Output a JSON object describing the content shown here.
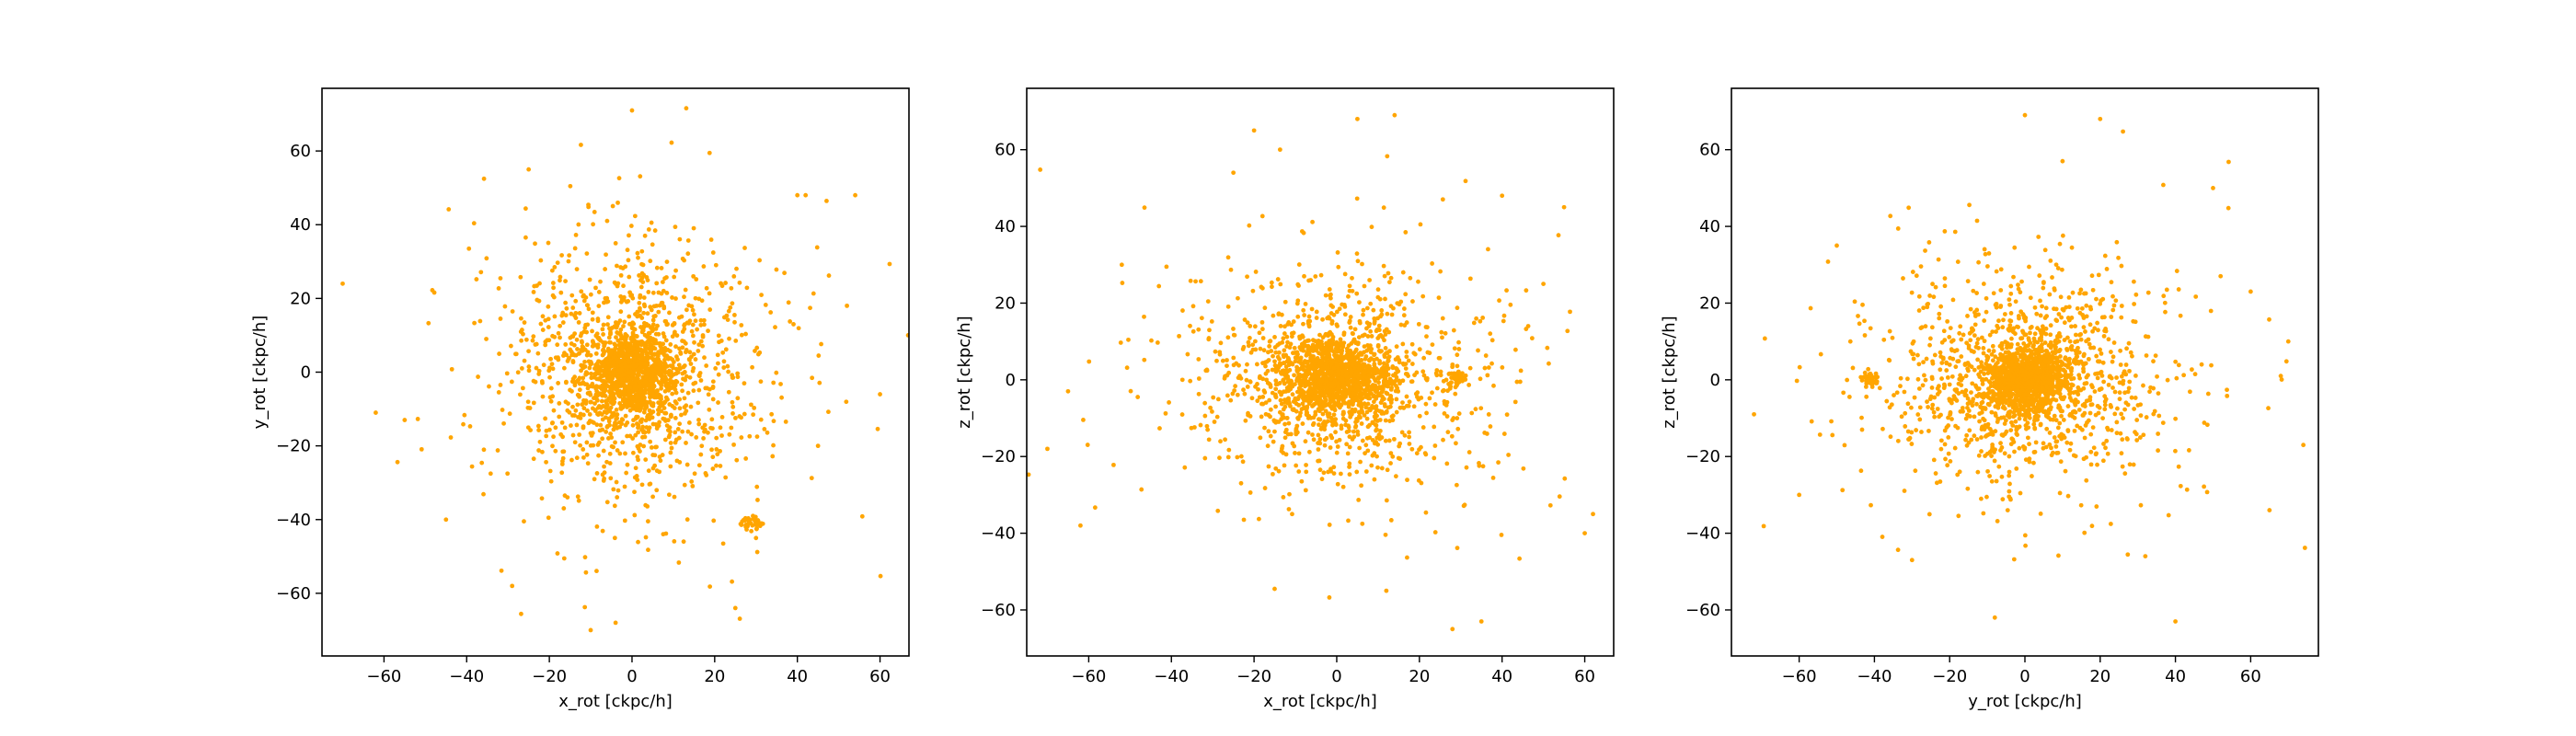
{
  "chart_data": [
    {
      "type": "scatter",
      "xlabel": "x_rot [ckpc/h]",
      "ylabel": "y_rot [ckpc/h]",
      "xlim": [
        -75,
        67
      ],
      "ylim": [
        -77,
        77
      ],
      "xticks": [
        -60,
        -40,
        -20,
        0,
        20,
        40,
        60
      ],
      "yticks": [
        -60,
        -40,
        -20,
        0,
        20,
        40,
        60
      ],
      "color": "#ffa500",
      "grid": false,
      "legend": "none",
      "distribution": {
        "core": {
          "center": [
            0,
            0
          ],
          "n": 900,
          "sigma": [
            5,
            6
          ]
        },
        "bulge": {
          "center": [
            0,
            0
          ],
          "n": 900,
          "sigma": [
            14,
            15
          ]
        },
        "halo": {
          "center": [
            0,
            0
          ],
          "n": 320,
          "sigma": [
            24,
            26
          ]
        },
        "clump": {
          "center": [
            29,
            -41
          ],
          "n": 40,
          "sigma": [
            1.2,
            1.2
          ]
        }
      },
      "x": [
        -70,
        54,
        60,
        -62,
        -55,
        -29,
        -10,
        0,
        25,
        40,
        52,
        42,
        -45,
        45,
        30,
        -25
      ],
      "y": [
        24,
        48,
        -6,
        -11,
        -13,
        -58,
        -70,
        71,
        -64,
        48,
        18,
        48,
        -40,
        -20,
        -45,
        55
      ]
    },
    {
      "type": "scatter",
      "xlabel": "x_rot [ckpc/h]",
      "ylabel": "z_rot [ckpc/h]",
      "xlim": [
        -75,
        67
      ],
      "ylim": [
        -72,
        76
      ],
      "xticks": [
        -60,
        -40,
        -20,
        0,
        20,
        40,
        60
      ],
      "yticks": [
        -60,
        -40,
        -20,
        0,
        20,
        40,
        60
      ],
      "color": "#ffa500",
      "grid": false,
      "legend": "none",
      "distribution": {
        "core": {
          "center": [
            0,
            0
          ],
          "n": 900,
          "sigma": [
            6,
            4.5
          ]
        },
        "bulge": {
          "center": [
            0,
            0
          ],
          "n": 900,
          "sigma": [
            15,
            12
          ]
        },
        "halo": {
          "center": [
            0,
            0
          ],
          "n": 320,
          "sigma": [
            26,
            22
          ]
        },
        "clump": {
          "center": [
            29,
            0
          ],
          "n": 40,
          "sigma": [
            1.2,
            1.2
          ]
        }
      },
      "x": [
        -70,
        -65,
        35,
        14,
        5,
        -25,
        40,
        60,
        62,
        55,
        -62,
        -20,
        28,
        50,
        -52,
        12
      ],
      "y": [
        -18,
        -3,
        -63,
        69,
        68,
        54,
        48,
        -40,
        -35,
        45,
        -38,
        65,
        -65,
        25,
        30,
        -55
      ]
    },
    {
      "type": "scatter",
      "xlabel": "y_rot [ckpc/h]",
      "ylabel": "z_rot [ckpc/h]",
      "xlim": [
        -78,
        78
      ],
      "ylim": [
        -72,
        76
      ],
      "xticks": [
        -60,
        -40,
        -20,
        0,
        20,
        40,
        60
      ],
      "yticks": [
        -60,
        -40,
        -20,
        0,
        20,
        40,
        60
      ],
      "color": "#ffa500",
      "grid": false,
      "legend": "none",
      "distribution": {
        "core": {
          "center": [
            0,
            0
          ],
          "n": 900,
          "sigma": [
            6,
            4.5
          ]
        },
        "bulge": {
          "center": [
            0,
            0
          ],
          "n": 900,
          "sigma": [
            16,
            12
          ]
        },
        "halo": {
          "center": [
            0,
            0
          ],
          "n": 320,
          "sigma": [
            28,
            22
          ]
        },
        "clump": {
          "center": [
            -41,
            0
          ],
          "n": 40,
          "sigma": [
            1.2,
            1.2
          ]
        }
      },
      "x": [
        -72,
        74,
        68,
        20,
        -8,
        0,
        50,
        65,
        -60,
        40,
        -30,
        60,
        70,
        32,
        -50,
        10
      ],
      "y": [
        -9,
        -17,
        1,
        68,
        -62,
        69,
        50,
        -34,
        -30,
        -63,
        -47,
        23,
        10,
        -46,
        35,
        57
      ]
    }
  ]
}
